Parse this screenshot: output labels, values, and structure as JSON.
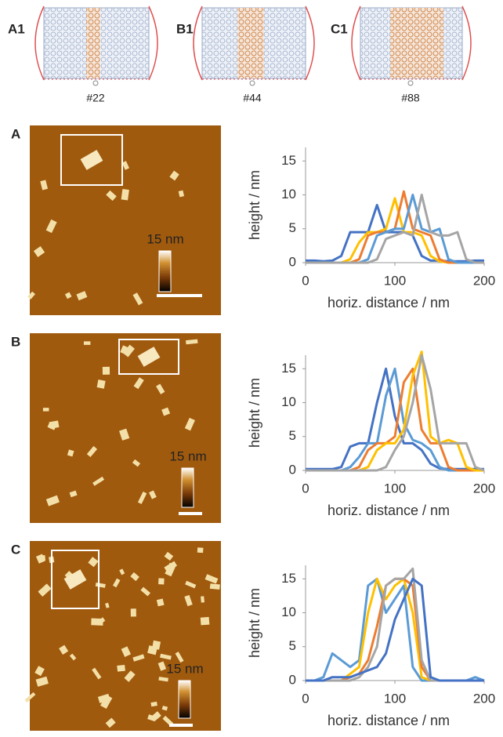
{
  "schematics": [
    {
      "panel": "A1",
      "label": "#22"
    },
    {
      "panel": "B1",
      "label": "#44"
    },
    {
      "panel": "C1",
      "label": "#88"
    }
  ],
  "afm_images": [
    {
      "panel": "A",
      "colorbar_label": "15 nm"
    },
    {
      "panel": "B",
      "colorbar_label": "15 nm"
    },
    {
      "panel": "C",
      "colorbar_label": "15 nm"
    }
  ],
  "chart_data": [
    {
      "type": "line",
      "xlabel": "horiz. distance / nm",
      "ylabel": "height / nm",
      "xlim": [
        0,
        200
      ],
      "xticks": [
        0,
        100,
        200
      ],
      "ylim": [
        0,
        17
      ],
      "yticks": [
        0,
        5,
        10,
        15
      ],
      "x": [
        0,
        10,
        20,
        30,
        40,
        50,
        60,
        70,
        80,
        90,
        100,
        110,
        120,
        130,
        140,
        150,
        160,
        170,
        180,
        190,
        200
      ],
      "series": [
        {
          "color": "#4472c4",
          "values": [
            0.3,
            0.3,
            0.2,
            0.3,
            1,
            4.5,
            4.5,
            4.5,
            8.5,
            4.5,
            4.5,
            4.5,
            4,
            1,
            0.3,
            0.3,
            0.2,
            0.2,
            0.2,
            0.3,
            0.3
          ]
        },
        {
          "color": "#ffc000",
          "values": [
            0,
            0,
            0,
            0,
            0,
            0.5,
            3,
            4.5,
            4.5,
            5,
            9.5,
            4.5,
            4.5,
            4,
            1,
            0.2,
            0,
            0,
            0,
            0,
            0
          ]
        },
        {
          "color": "#ed7d31",
          "values": [
            0,
            0,
            0,
            0,
            0,
            0,
            0.5,
            4,
            4.5,
            4.5,
            5,
            10.5,
            5,
            4.5,
            4,
            0.5,
            0,
            0,
            0,
            0,
            0
          ]
        },
        {
          "color": "#5b9bd5",
          "values": [
            0,
            0,
            0,
            0,
            0,
            0,
            0,
            0.5,
            4,
            4.5,
            5,
            5,
            10,
            5,
            4.5,
            5,
            0.5,
            0,
            0,
            0,
            0
          ]
        },
        {
          "color": "#a5a5a5",
          "values": [
            0,
            0,
            0,
            0,
            0,
            0,
            0,
            0,
            0.5,
            3.5,
            4,
            4.5,
            4,
            10,
            4.5,
            4,
            4,
            4.5,
            0.5,
            0,
            0
          ]
        }
      ]
    },
    {
      "type": "line",
      "xlabel": "horiz. distance / nm",
      "ylabel": "height / nm",
      "xlim": [
        0,
        200
      ],
      "xticks": [
        0,
        100,
        200
      ],
      "ylim": [
        0,
        17
      ],
      "yticks": [
        0,
        5,
        10,
        15
      ],
      "x": [
        0,
        10,
        20,
        30,
        40,
        50,
        60,
        70,
        80,
        90,
        100,
        110,
        120,
        130,
        140,
        150,
        160,
        170,
        180,
        190,
        200
      ],
      "series": [
        {
          "color": "#4472c4",
          "values": [
            0.2,
            0.2,
            0.2,
            0.2,
            0.5,
            3.5,
            4,
            4,
            10,
            15,
            8,
            4,
            4,
            3,
            1,
            0.3,
            0.2,
            0.2,
            0.2,
            0.2,
            0.2
          ]
        },
        {
          "color": "#5b9bd5",
          "values": [
            0,
            0,
            0,
            0,
            0,
            0.5,
            2,
            4,
            4,
            11,
            15,
            7,
            4.5,
            4,
            3,
            0.5,
            0,
            0,
            0,
            0,
            0
          ]
        },
        {
          "color": "#ed7d31",
          "values": [
            0,
            0,
            0,
            0,
            0,
            0,
            0.5,
            3,
            4,
            4,
            5,
            13,
            15,
            6,
            4,
            4,
            0.5,
            0,
            0,
            0,
            0
          ]
        },
        {
          "color": "#ffc000",
          "values": [
            0,
            0,
            0,
            0,
            0,
            0,
            0,
            0.5,
            3,
            4,
            4,
            6,
            14,
            17.5,
            5,
            4,
            4.5,
            4,
            0.5,
            0,
            0
          ]
        },
        {
          "color": "#a5a5a5",
          "values": [
            0,
            0,
            0,
            0,
            0,
            0,
            0,
            0,
            0,
            0.5,
            3,
            5,
            10,
            17,
            12,
            4,
            4,
            4,
            4,
            0.5,
            0
          ]
        }
      ]
    },
    {
      "type": "line",
      "xlabel": "horiz. distance / nm",
      "ylabel": "height / nm",
      "xlim": [
        0,
        200
      ],
      "xticks": [
        0,
        100,
        200
      ],
      "ylim": [
        0,
        17
      ],
      "yticks": [
        0,
        5,
        10,
        15
      ],
      "x": [
        0,
        10,
        20,
        30,
        40,
        50,
        60,
        70,
        80,
        90,
        100,
        110,
        120,
        130,
        140,
        150,
        160,
        170,
        180,
        190,
        200
      ],
      "series": [
        {
          "color": "#5b9bd5",
          "values": [
            0,
            0,
            0.5,
            4,
            3,
            2,
            3,
            14,
            15,
            10,
            12,
            14,
            2,
            0,
            0,
            0,
            0,
            0,
            0,
            0.5,
            0
          ]
        },
        {
          "color": "#ffc000",
          "values": [
            0,
            0,
            0,
            0,
            0,
            1,
            2,
            10,
            15,
            12,
            14,
            15,
            10,
            0.5,
            0,
            0,
            0,
            0,
            0,
            0,
            0
          ]
        },
        {
          "color": "#ed7d31",
          "values": [
            0,
            0,
            0,
            0,
            0,
            0.5,
            1,
            3,
            8,
            14,
            15,
            15,
            14,
            2,
            0,
            0,
            0,
            0,
            0,
            0,
            0
          ]
        },
        {
          "color": "#a5a5a5",
          "values": [
            0,
            0,
            0,
            0,
            0,
            0,
            0.5,
            2,
            5,
            14,
            15,
            15,
            16.5,
            3,
            0,
            0,
            0,
            0,
            0,
            0,
            0
          ]
        },
        {
          "color": "#4472c4",
          "values": [
            0,
            0,
            0,
            0.5,
            0.5,
            0.5,
            1,
            1.5,
            2,
            4,
            9,
            12,
            15,
            14,
            0.5,
            0,
            0,
            0,
            0,
            0,
            0
          ]
        }
      ]
    }
  ]
}
